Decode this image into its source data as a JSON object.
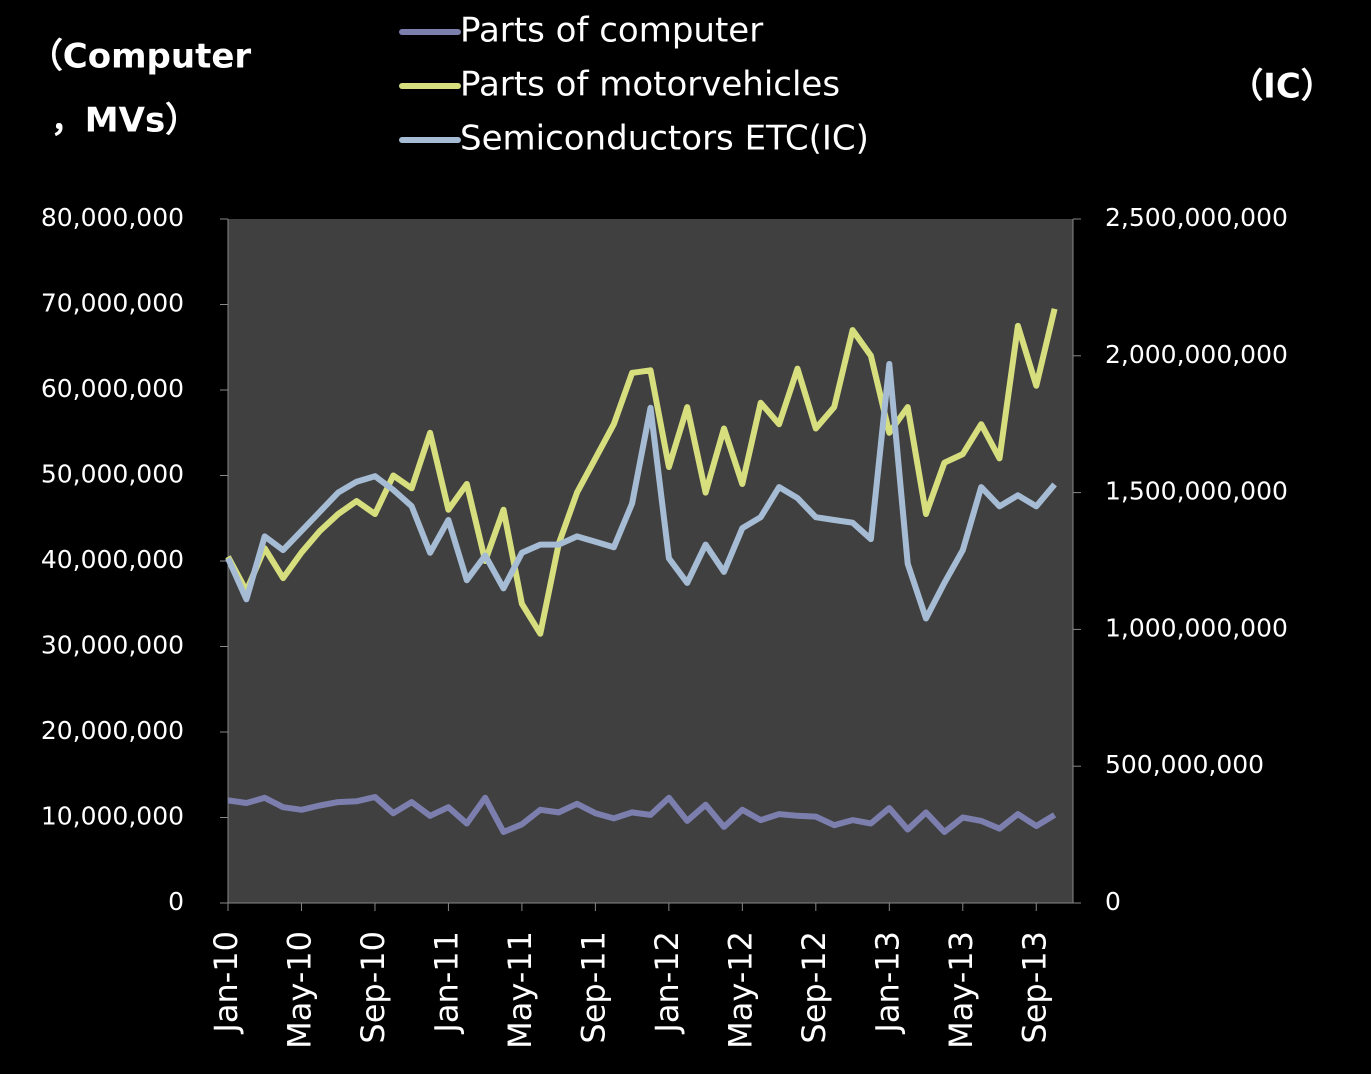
{
  "chart_data": {
    "type": "line",
    "y_label": [
      "（Computer",
      "，MVs）"
    ],
    "y2_label": "（IC）",
    "categories": [
      "Jan-10",
      null,
      null,
      null,
      "May-10",
      null,
      null,
      null,
      "Sep-10",
      null,
      null,
      null,
      "Jan-11",
      null,
      null,
      null,
      "May-11",
      null,
      null,
      null,
      "Sep-11",
      null,
      null,
      null,
      "Jan-12",
      null,
      null,
      null,
      "May-12",
      null,
      null,
      null,
      "Sep-12",
      null,
      null,
      null,
      "Jan-13",
      null,
      null,
      null,
      "May-13",
      null,
      null,
      null,
      "Sep-13",
      null
    ],
    "series": [
      {
        "name": "Parts of computer",
        "color": "#7c7fae",
        "values": [
          12000000,
          11700000,
          12300000,
          11200000,
          10900000,
          11400000,
          11800000,
          11900000,
          12400000,
          10500000,
          11800000,
          10200000,
          11200000,
          9300000,
          12300000,
          8300000,
          9200000,
          10900000,
          10600000,
          11600000,
          10500000,
          9900000,
          10600000,
          10300000,
          12300000,
          9600000,
          11500000,
          8900000,
          10900000,
          9700000,
          10400000,
          10200000,
          10100000,
          9100000,
          9700000,
          9300000,
          11100000,
          8600000,
          10600000,
          8300000,
          10000000,
          9600000,
          8700000,
          10400000,
          9000000,
          10300000
        ]
      },
      {
        "name": "Parts of motorvehicles",
        "color": "#d6de7e",
        "values": [
          40500000,
          36500000,
          41500000,
          38000000,
          41000000,
          43500000,
          45500000,
          47000000,
          45500000,
          50000000,
          48500000,
          55000000,
          46000000,
          49000000,
          40000000,
          46000000,
          35000000,
          31500000,
          42000000,
          48000000,
          52000000,
          56000000,
          62000000,
          62300000,
          51000000,
          58000000,
          48000000,
          55500000,
          49000000,
          58500000,
          56000000,
          62500000,
          55500000,
          58000000,
          67000000,
          64000000,
          55000000,
          58000000,
          45500000,
          51500000,
          52500000,
          56000000,
          52000000,
          67500000,
          60500000,
          69500000
        ]
      },
      {
        "name": "Semiconductors ETC(IC)",
        "color": "#a5bcd4",
        "axis": "y2",
        "values": [
          1260000000,
          1110000000,
          1340000000,
          1290000000,
          1360000000,
          1430000000,
          1500000000,
          1540000000,
          1560000000,
          1510000000,
          1450000000,
          1280000000,
          1400000000,
          1180000000,
          1270000000,
          1150000000,
          1280000000,
          1310000000,
          1310000000,
          1340000000,
          1320000000,
          1300000000,
          1460000000,
          1810000000,
          1260000000,
          1170000000,
          1310000000,
          1210000000,
          1370000000,
          1410000000,
          1520000000,
          1480000000,
          1410000000,
          1400000000,
          1390000000,
          1330000000,
          1970000000,
          1240000000,
          1040000000,
          1170000000,
          1290000000,
          1520000000,
          1450000000,
          1490000000,
          1450000000,
          1530000000
        ]
      }
    ],
    "ylim": [
      0,
      80000000
    ],
    "yticks": [
      0,
      {
        "value": 10000000,
        "label": "10,000,000"
      },
      {
        "value": 20000000,
        "label": "20,000,000"
      },
      {
        "value": 30000000,
        "label": "30,000,000"
      },
      {
        "value": 40000000,
        "label": "40,000,000"
      },
      {
        "value": 50000000,
        "label": "50,000,000"
      },
      {
        "value": 60000000,
        "label": "60,000,000"
      },
      {
        "value": 70000000,
        "label": "70,000,000"
      },
      {
        "value": 80000000,
        "label": "80,000,000"
      }
    ],
    "y2lim": [
      0,
      2500000000
    ],
    "y2ticks": [
      0,
      {
        "value": 500000000,
        "label": "500,000,000"
      },
      {
        "value": 1000000000,
        "label": "1,000,000,000"
      },
      {
        "value": 1500000000,
        "label": "1,500,000,000"
      },
      {
        "value": 2000000000,
        "label": "2,000,000,000"
      },
      {
        "value": 2500000000,
        "label": "2,500,000,000"
      }
    ],
    "grid": false
  }
}
